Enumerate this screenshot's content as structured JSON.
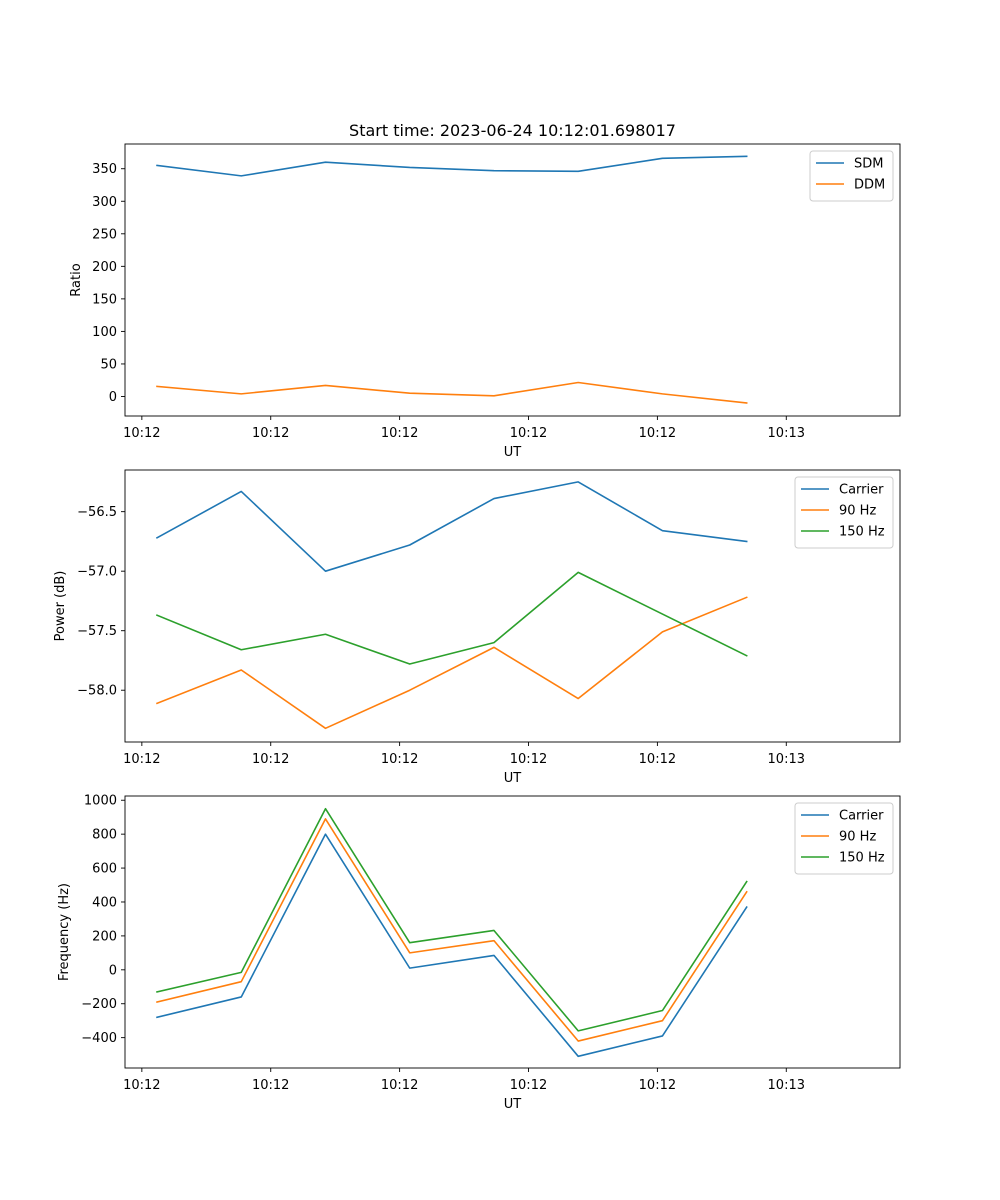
{
  "figure_title": "Start time: 2023-06-24 10:12:01.698017",
  "chart_data": [
    {
      "type": "line",
      "title": "Start time: 2023-06-24 10:12:01.698017",
      "xlabel": "UT",
      "ylabel": "Ratio",
      "x": [
        1,
        2,
        3,
        4,
        5,
        6,
        7,
        8
      ],
      "x_ticks": [
        0.82,
        2.35,
        3.88,
        5.41,
        6.94,
        8.47
      ],
      "x_tick_labels": [
        "10:12",
        "10:12",
        "10:12",
        "10:12",
        "10:12",
        "10:13"
      ],
      "xlim": [
        0.62,
        9.82
      ],
      "y_ticks": [
        0,
        50,
        100,
        150,
        200,
        250,
        300,
        350
      ],
      "y_tick_labels": [
        "0",
        "50",
        "100",
        "150",
        "200",
        "250",
        "300",
        "350"
      ],
      "ylim": [
        -30,
        388
      ],
      "grid": false,
      "legend_position": "upper right",
      "series": [
        {
          "name": "SDM",
          "color": "#1f77b4",
          "values": [
            355,
            339,
            360,
            352,
            347,
            346,
            366,
            369
          ]
        },
        {
          "name": "DDM",
          "color": "#ff7f0e",
          "values": [
            15.5,
            4,
            17,
            5,
            1,
            21.5,
            4,
            -10
          ]
        }
      ]
    },
    {
      "type": "line",
      "title": "",
      "xlabel": "UT",
      "ylabel": "Power (dB)",
      "x": [
        1,
        2,
        3,
        4,
        5,
        6,
        7,
        8
      ],
      "x_ticks": [
        0.82,
        2.35,
        3.88,
        5.41,
        6.94,
        8.47
      ],
      "x_tick_labels": [
        "10:12",
        "10:12",
        "10:12",
        "10:12",
        "10:12",
        "10:13"
      ],
      "xlim": [
        0.62,
        9.82
      ],
      "y_ticks": [
        -58.0,
        -57.5,
        -57.0,
        -56.5
      ],
      "y_tick_labels": [
        "−58.0",
        "−57.5",
        "−57.0",
        "−56.5"
      ],
      "ylim": [
        -58.435,
        -56.15
      ],
      "grid": false,
      "legend_position": "upper right",
      "series": [
        {
          "name": "Carrier",
          "color": "#1f77b4",
          "values": [
            -56.72,
            -56.33,
            -57.0,
            -56.78,
            -56.39,
            -56.25,
            -56.66,
            -56.75
          ]
        },
        {
          "name": "90 Hz",
          "color": "#ff7f0e",
          "values": [
            -58.11,
            -57.83,
            -58.32,
            -58.0,
            -57.64,
            -58.07,
            -57.51,
            -57.22
          ]
        },
        {
          "name": "150 Hz",
          "color": "#2ca02c",
          "values": [
            -57.37,
            -57.66,
            -57.53,
            -57.78,
            -57.6,
            -57.01,
            -57.36,
            -57.71
          ]
        }
      ]
    },
    {
      "type": "line",
      "title": "",
      "xlabel": "UT",
      "ylabel": "Frequency (Hz)",
      "x": [
        1,
        2,
        3,
        4,
        5,
        6,
        7,
        8
      ],
      "x_ticks": [
        0.82,
        2.35,
        3.88,
        5.41,
        6.94,
        8.47
      ],
      "x_tick_labels": [
        "10:12",
        "10:12",
        "10:12",
        "10:12",
        "10:12",
        "10:13"
      ],
      "xlim": [
        0.62,
        9.82
      ],
      "y_ticks": [
        -400,
        -200,
        0,
        200,
        400,
        600,
        800,
        1000
      ],
      "y_tick_labels": [
        "−400",
        "−200",
        "0",
        "200",
        "400",
        "600",
        "800",
        "1000"
      ],
      "ylim": [
        -579,
        1025
      ],
      "grid": false,
      "legend_position": "upper right",
      "series": [
        {
          "name": "Carrier",
          "color": "#1f77b4",
          "values": [
            -280,
            -160,
            800,
            10,
            85,
            -510,
            -390,
            370
          ]
        },
        {
          "name": "90 Hz",
          "color": "#ff7f0e",
          "values": [
            -190,
            -70,
            890,
            100,
            172,
            -420,
            -300,
            460
          ]
        },
        {
          "name": "150 Hz",
          "color": "#2ca02c",
          "values": [
            -130,
            -15,
            950,
            160,
            232,
            -360,
            -240,
            520
          ]
        }
      ]
    }
  ]
}
